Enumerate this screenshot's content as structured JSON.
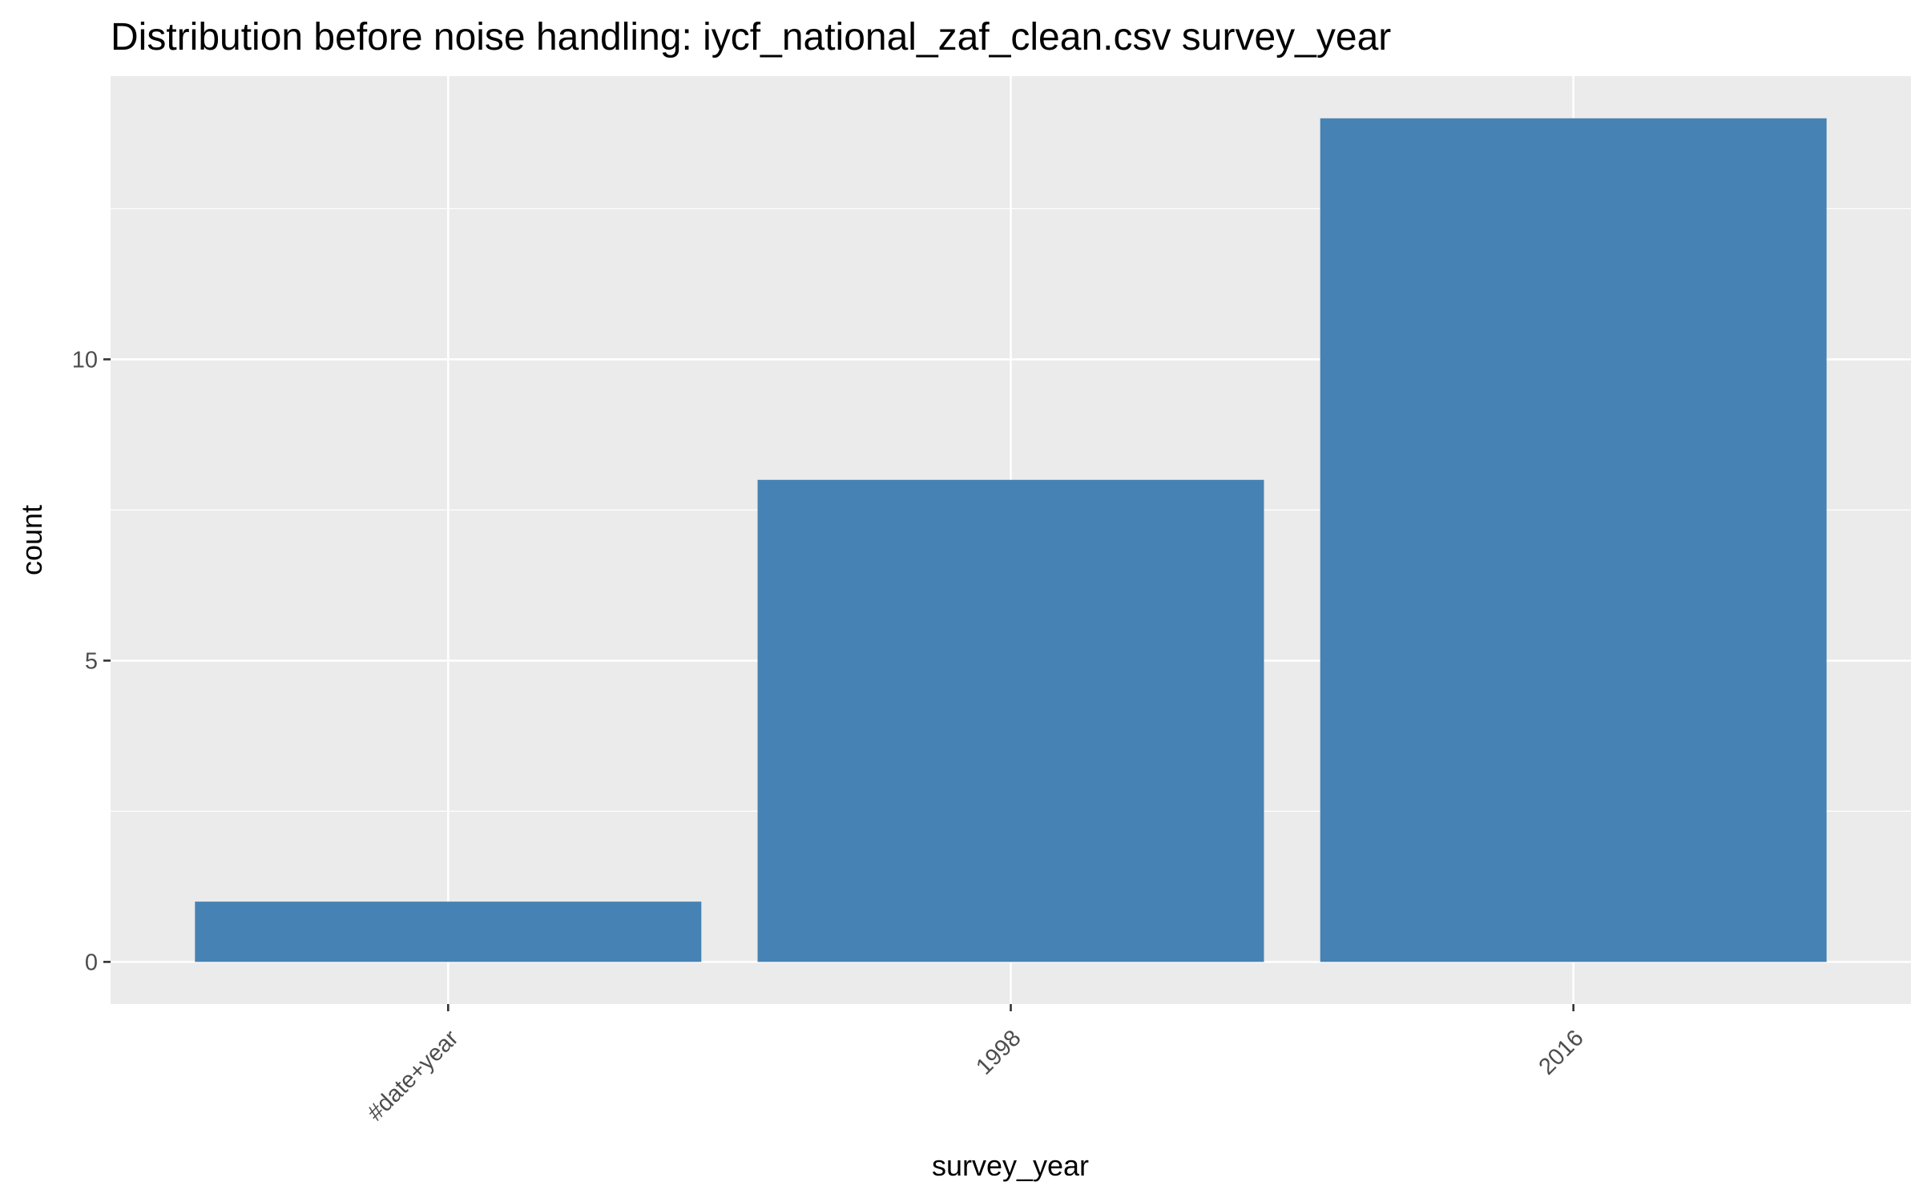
{
  "chart_data": {
    "type": "bar",
    "title": "Distribution before noise handling: iycf_national_zaf_clean.csv survey_year",
    "xlabel": "survey_year",
    "ylabel": "count",
    "categories": [
      "#date+year",
      "1998",
      "2016"
    ],
    "values": [
      1,
      8,
      14
    ],
    "ylim": [
      -0.7,
      14.7
    ],
    "yticks": [
      0,
      5,
      10
    ],
    "yminor_ticks": [
      2.5,
      7.5,
      12.5
    ],
    "grid": true,
    "legend": "none",
    "colors": {
      "bar": "#4682B4",
      "panel": "#EBEBEB",
      "grid": "#FFFFFF",
      "tick": "#333333",
      "tick_label": "#4D4D4D"
    }
  }
}
